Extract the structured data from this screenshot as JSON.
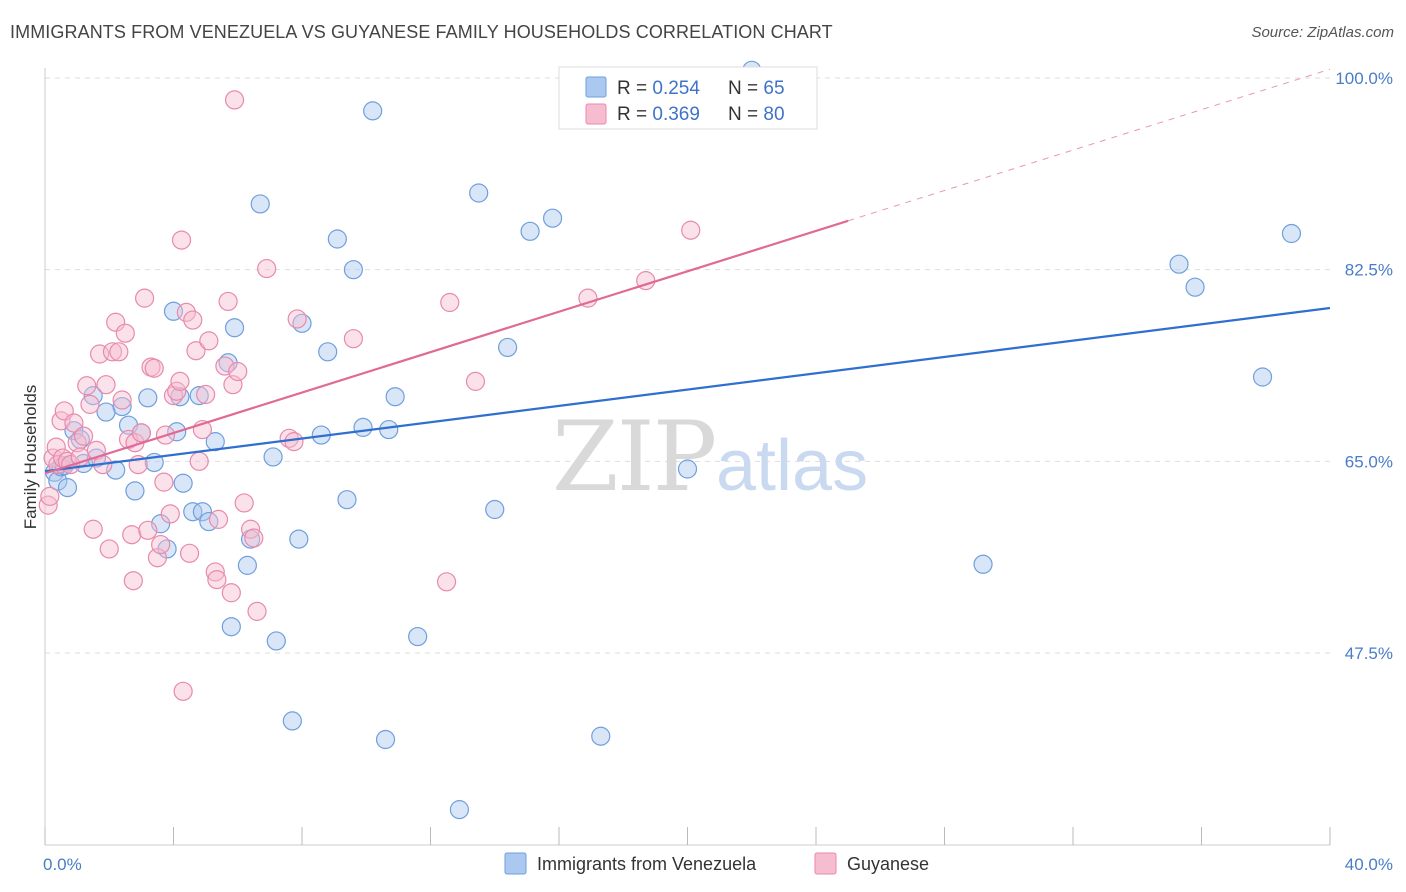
{
  "title": "IMMIGRANTS FROM VENEZUELA VS GUYANESE FAMILY HOUSEHOLDS CORRELATION CHART",
  "source": "Source: ZipAtlas.com",
  "watermark": {
    "zip": "ZIP",
    "atlas": "atlas"
  },
  "legend_top": [
    {
      "r_label": "R = ",
      "r_value": "0.254",
      "n_label": "N = ",
      "n_value": "65"
    },
    {
      "r_label": "R = ",
      "r_value": "0.369",
      "n_label": "N = ",
      "n_value": "80"
    }
  ],
  "colors": {
    "blue_fill": "#aac8f0",
    "blue_stroke": "#6f9fdc",
    "blue_line": "#2f6fcf",
    "pink_fill": "#f6bcd0",
    "pink_stroke": "#e88aab",
    "pink_line": "#e06a96",
    "grid": "#dddddd",
    "axis_label": "#4a7cc7"
  },
  "chart_data": {
    "type": "scatter",
    "title": "IMMIGRANTS FROM VENEZUELA VS GUYANESE FAMILY HOUSEHOLDS CORRELATION CHART",
    "xlabel": "",
    "ylabel": "Family Households",
    "xlim": [
      0,
      40
    ],
    "ylim": [
      32.5,
      102
    ],
    "x_tick_labels": [
      "0.0%",
      "40.0%"
    ],
    "y_ticks": [
      47.5,
      65.0,
      82.5,
      100.0
    ],
    "y_tick_labels": [
      "47.5%",
      "65.0%",
      "82.5%",
      "100.0%"
    ],
    "grid": true,
    "legend_position": "top-center",
    "series": [
      {
        "name": "Immigrants from Venezuela",
        "color": "blue",
        "trend": {
          "x": [
            0,
            40
          ],
          "y": [
            64.1,
            79.0
          ],
          "dashed_from": null
        },
        "points": [
          [
            0.3,
            64.0
          ],
          [
            0.4,
            63.2
          ],
          [
            0.5,
            64.5
          ],
          [
            0.6,
            64.6
          ],
          [
            0.7,
            62.6
          ],
          [
            0.9,
            67.8
          ],
          [
            1.1,
            67.0
          ],
          [
            1.2,
            64.8
          ],
          [
            1.5,
            71.0
          ],
          [
            1.6,
            65.3
          ],
          [
            1.9,
            69.5
          ],
          [
            2.2,
            64.2
          ],
          [
            2.4,
            70.0
          ],
          [
            2.6,
            68.3
          ],
          [
            2.8,
            62.3
          ],
          [
            3.0,
            67.6
          ],
          [
            3.2,
            70.8
          ],
          [
            3.4,
            64.9
          ],
          [
            3.6,
            59.3
          ],
          [
            3.8,
            57.0
          ],
          [
            4.0,
            78.7
          ],
          [
            4.1,
            67.7
          ],
          [
            4.2,
            70.9
          ],
          [
            4.3,
            63.0
          ],
          [
            4.6,
            60.4
          ],
          [
            4.8,
            71.0
          ],
          [
            4.9,
            60.4
          ],
          [
            5.1,
            59.5
          ],
          [
            5.3,
            66.8
          ],
          [
            5.7,
            74.0
          ],
          [
            5.8,
            49.9
          ],
          [
            5.9,
            77.2
          ],
          [
            6.3,
            55.5
          ],
          [
            6.4,
            57.9
          ],
          [
            6.7,
            88.5
          ],
          [
            7.1,
            65.4
          ],
          [
            7.2,
            48.6
          ],
          [
            7.7,
            41.3
          ],
          [
            7.9,
            57.9
          ],
          [
            8.0,
            77.6
          ],
          [
            8.6,
            67.4
          ],
          [
            8.8,
            75.0
          ],
          [
            9.1,
            85.3
          ],
          [
            9.4,
            61.5
          ],
          [
            9.6,
            82.5
          ],
          [
            9.9,
            68.1
          ],
          [
            10.2,
            97.0
          ],
          [
            10.6,
            39.6
          ],
          [
            10.7,
            67.9
          ],
          [
            10.9,
            70.9
          ],
          [
            11.6,
            49.0
          ],
          [
            12.9,
            33.2
          ],
          [
            13.5,
            89.5
          ],
          [
            14.0,
            60.6
          ],
          [
            14.4,
            75.4
          ],
          [
            15.1,
            86.0
          ],
          [
            15.8,
            87.2
          ],
          [
            17.3,
            39.9
          ],
          [
            20.0,
            64.3
          ],
          [
            22.0,
            100.7
          ],
          [
            29.2,
            55.6
          ],
          [
            35.3,
            83.0
          ],
          [
            35.8,
            80.9
          ],
          [
            37.9,
            72.7
          ],
          [
            38.8,
            85.8
          ]
        ]
      },
      {
        "name": "Guyanese",
        "color": "pink",
        "trend": {
          "x": [
            0,
            40
          ],
          "y": [
            63.9,
            100.8
          ],
          "dashed_from": 25.0
        },
        "points": [
          [
            0.1,
            61.0
          ],
          [
            0.15,
            61.8
          ],
          [
            0.25,
            65.3
          ],
          [
            0.35,
            66.3
          ],
          [
            0.4,
            64.7
          ],
          [
            0.5,
            68.7
          ],
          [
            0.55,
            65.3
          ],
          [
            0.6,
            69.6
          ],
          [
            0.7,
            65.0
          ],
          [
            0.8,
            64.7
          ],
          [
            0.9,
            68.5
          ],
          [
            1.0,
            66.7
          ],
          [
            1.1,
            65.4
          ],
          [
            1.2,
            67.3
          ],
          [
            1.3,
            71.9
          ],
          [
            1.4,
            70.2
          ],
          [
            1.5,
            58.8
          ],
          [
            1.6,
            66.0
          ],
          [
            1.7,
            74.8
          ],
          [
            1.8,
            64.7
          ],
          [
            1.9,
            72.0
          ],
          [
            2.0,
            57.0
          ],
          [
            2.1,
            75.0
          ],
          [
            2.2,
            77.7
          ],
          [
            2.3,
            75.0
          ],
          [
            2.4,
            70.6
          ],
          [
            2.5,
            76.7
          ],
          [
            2.6,
            67.0
          ],
          [
            2.7,
            58.3
          ],
          [
            2.75,
            54.1
          ],
          [
            2.8,
            66.7
          ],
          [
            2.9,
            64.7
          ],
          [
            3.0,
            67.6
          ],
          [
            3.1,
            79.9
          ],
          [
            3.2,
            58.7
          ],
          [
            3.3,
            73.6
          ],
          [
            3.4,
            73.5
          ],
          [
            3.5,
            56.2
          ],
          [
            3.6,
            57.4
          ],
          [
            3.7,
            63.1
          ],
          [
            3.75,
            67.4
          ],
          [
            3.9,
            60.2
          ],
          [
            4.0,
            71.0
          ],
          [
            4.1,
            71.4
          ],
          [
            4.2,
            72.3
          ],
          [
            4.25,
            85.2
          ],
          [
            4.3,
            44.0
          ],
          [
            4.4,
            78.6
          ],
          [
            4.5,
            56.6
          ],
          [
            4.6,
            77.9
          ],
          [
            4.7,
            75.1
          ],
          [
            4.8,
            65.0
          ],
          [
            4.9,
            67.9
          ],
          [
            5.0,
            71.1
          ],
          [
            5.1,
            76.0
          ],
          [
            5.3,
            54.9
          ],
          [
            5.35,
            54.2
          ],
          [
            5.4,
            59.7
          ],
          [
            5.6,
            73.7
          ],
          [
            5.7,
            79.6
          ],
          [
            5.8,
            53.0
          ],
          [
            5.85,
            72.0
          ],
          [
            5.9,
            98.0
          ],
          [
            6.0,
            73.2
          ],
          [
            6.2,
            61.2
          ],
          [
            6.4,
            58.8
          ],
          [
            6.5,
            58.0
          ],
          [
            6.6,
            51.3
          ],
          [
            6.9,
            82.6
          ],
          [
            7.6,
            67.1
          ],
          [
            7.75,
            66.8
          ],
          [
            7.85,
            78.0
          ],
          [
            9.6,
            76.2
          ],
          [
            12.5,
            54.0
          ],
          [
            12.6,
            79.5
          ],
          [
            13.4,
            72.3
          ],
          [
            16.8,
            97.8
          ],
          [
            16.9,
            79.9
          ],
          [
            18.7,
            81.5
          ],
          [
            20.1,
            86.1
          ]
        ]
      }
    ]
  }
}
